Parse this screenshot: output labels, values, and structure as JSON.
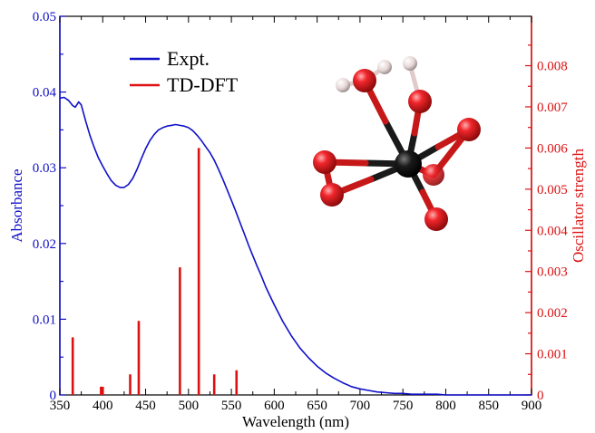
{
  "chart_data": {
    "type": "line",
    "xlabel": "Wavelength (nm)",
    "ylabel_left": "Absorbance",
    "ylabel_right": "Oscillator strength",
    "xlim": [
      350,
      900
    ],
    "ylim_left": [
      0,
      0.05
    ],
    "ylim_right": [
      0,
      0.0092
    ],
    "x_ticks": [
      "350",
      "400",
      "450",
      "500",
      "550",
      "600",
      "650",
      "700",
      "750",
      "800",
      "850",
      "900"
    ],
    "y_left_ticks": [
      "0",
      "0.01",
      "0.02",
      "0.03",
      "0.04",
      "0.05"
    ],
    "y_right_ticks": [
      "0",
      "0.001",
      "0.002",
      "0.003",
      "0.004",
      "0.005",
      "0.006",
      "0.007",
      "0.008"
    ],
    "legend": {
      "position": "top-left",
      "entries": [
        "Expt.",
        "TD-DFT"
      ]
    },
    "colors": {
      "expt": "#1010c8",
      "tddft": "#dd1111",
      "left_axis": "#1010c8",
      "right_axis": "#dd1111"
    },
    "series": [
      {
        "name": "Expt.",
        "axis": "left",
        "style": "line",
        "x": [
          350,
          355,
          360,
          365,
          368,
          372,
          375,
          380,
          385,
          390,
          395,
          400,
          405,
          410,
          415,
          420,
          425,
          430,
          435,
          440,
          445,
          450,
          455,
          460,
          465,
          470,
          475,
          480,
          485,
          490,
          495,
          500,
          505,
          510,
          515,
          520,
          525,
          530,
          535,
          540,
          545,
          550,
          555,
          560,
          565,
          570,
          575,
          580,
          585,
          590,
          595,
          600,
          610,
          620,
          630,
          640,
          650,
          660,
          670,
          680,
          690,
          700,
          710,
          720,
          730,
          740,
          750,
          760,
          770,
          780,
          790,
          800,
          820,
          840,
          860,
          880,
          900
        ],
        "y": [
          0.0392,
          0.0393,
          0.0389,
          0.0382,
          0.038,
          0.0387,
          0.0383,
          0.0362,
          0.0343,
          0.0327,
          0.0313,
          0.0302,
          0.0292,
          0.0283,
          0.0277,
          0.0274,
          0.0274,
          0.0278,
          0.0286,
          0.0298,
          0.0312,
          0.0325,
          0.0336,
          0.0344,
          0.035,
          0.0353,
          0.0355,
          0.0356,
          0.0357,
          0.0356,
          0.0355,
          0.0353,
          0.0349,
          0.0343,
          0.0336,
          0.0328,
          0.032,
          0.031,
          0.0298,
          0.0285,
          0.0271,
          0.0257,
          0.0243,
          0.0228,
          0.0213,
          0.0198,
          0.0184,
          0.017,
          0.0157,
          0.0143,
          0.0131,
          0.0119,
          0.0097,
          0.0078,
          0.0062,
          0.0049,
          0.0038,
          0.0029,
          0.0022,
          0.0016,
          0.0011,
          0.0008,
          0.0006,
          0.0004,
          0.0003,
          0.0002,
          0.0002,
          0.0001,
          0.0001,
          0.0001,
          0.0001,
          0.0,
          0.0,
          0.0,
          0.0,
          0.0,
          0.0
        ]
      },
      {
        "name": "TD-DFT",
        "axis": "right",
        "style": "stick",
        "x": [
          365,
          398,
          400,
          432,
          442,
          490,
          512,
          530,
          556
        ],
        "y": [
          0.0014,
          0.0002,
          0.0002,
          0.0005,
          0.0018,
          0.0031,
          0.006,
          0.0005,
          0.0006
        ]
      }
    ]
  },
  "molecule": {
    "central_color": "#111111",
    "oxygen_color": "#e8101a",
    "hydrogen_color": "#e9dcdc",
    "bond_color_dark": "#1a1a1a",
    "bond_color_red": "#c61818"
  }
}
